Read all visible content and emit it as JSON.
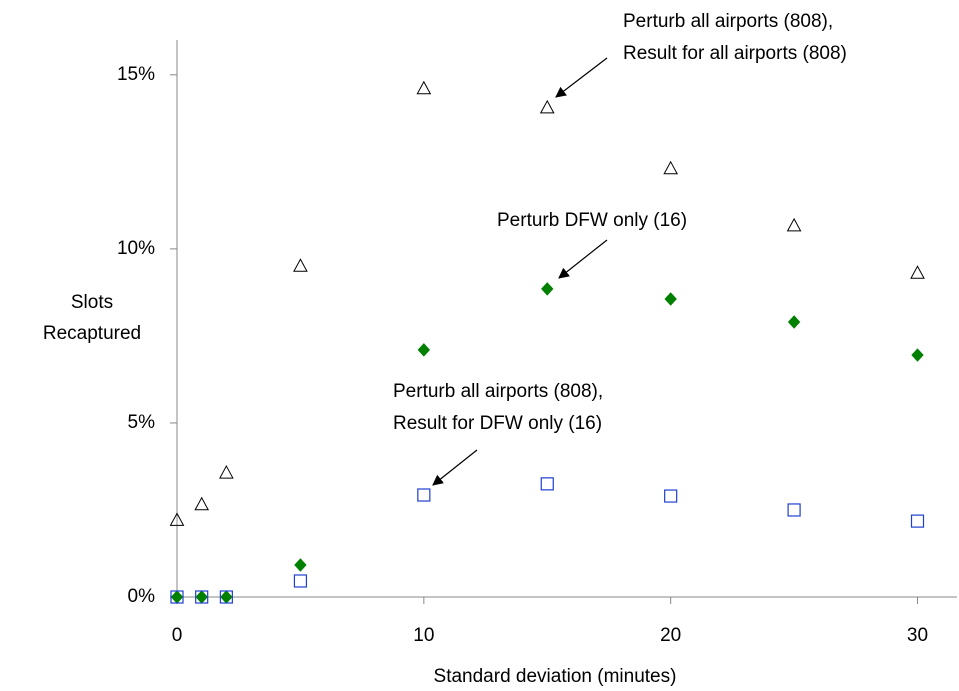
{
  "chart_data": {
    "type": "scatter",
    "xlabel": "Standard deviation (minutes)",
    "ylabel": [
      "Slots",
      "Recaptured"
    ],
    "xlim": [
      0,
      31.6
    ],
    "ylim": [
      0,
      16
    ],
    "xticks": [
      0,
      10,
      20,
      30
    ],
    "yticks": [
      {
        "value": 0,
        "label": "0%"
      },
      {
        "value": 5,
        "label": "5%"
      },
      {
        "value": 10,
        "label": "10%"
      },
      {
        "value": 15,
        "label": "15%"
      }
    ],
    "x": [
      0,
      1,
      2,
      5,
      10,
      15,
      20,
      25,
      30
    ],
    "series": [
      {
        "marker": "triangle",
        "color": "#000000",
        "values": [
          2.2,
          2.65,
          3.56,
          9.5,
          14.6,
          14.05,
          12.3,
          10.66,
          9.3
        ]
      },
      {
        "marker": "diamond",
        "color": "#008000",
        "values": [
          0,
          0,
          0,
          0.92,
          7.1,
          8.85,
          8.56,
          7.9,
          6.95
        ]
      },
      {
        "marker": "square",
        "color": "#1f3fd0",
        "values": [
          0,
          0,
          0,
          0.46,
          2.93,
          3.25,
          2.9,
          2.5,
          2.18
        ]
      }
    ],
    "annotations": [
      {
        "lines": [
          "Perturb all airports (808),",
          "Result for all airports (808)"
        ]
      },
      {
        "lines": [
          "Perturb DFW only (16)"
        ]
      },
      {
        "lines": [
          "Perturb all airports (808),",
          "Result for DFW only (16)"
        ]
      }
    ]
  }
}
